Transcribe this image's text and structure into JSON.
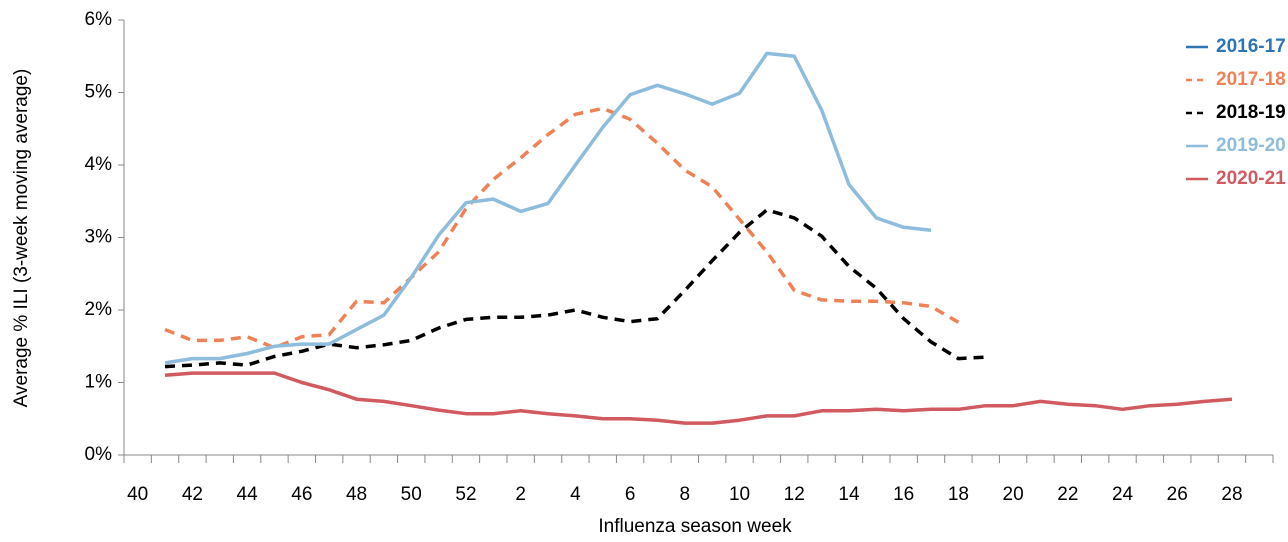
{
  "chart_data": {
    "type": "line",
    "ylabel": "Average % ILI (3-week moving average)",
    "xlabel": "Influenza season week",
    "categories": [
      40,
      null,
      42,
      null,
      44,
      null,
      46,
      null,
      48,
      null,
      50,
      null,
      52,
      null,
      2,
      null,
      4,
      null,
      6,
      null,
      8,
      null,
      10,
      null,
      12,
      null,
      14,
      null,
      16,
      null,
      18,
      null,
      20,
      null,
      22,
      null,
      24,
      null,
      26,
      null,
      28,
      null
    ],
    "ylim": [
      0,
      6
    ],
    "yticks": [
      {
        "value": 0,
        "label": "0%"
      },
      {
        "value": 1,
        "label": "1%"
      },
      {
        "value": 2,
        "label": "2%"
      },
      {
        "value": 3,
        "label": "3%"
      },
      {
        "value": 4,
        "label": "4%"
      },
      {
        "value": 5,
        "label": "5%"
      },
      {
        "value": 6,
        "label": "6%"
      }
    ],
    "grid": false,
    "legend": "top-right",
    "series": [
      {
        "name": "2016-17",
        "color": "#2e75b6",
        "style": "solid",
        "values": [
          null,
          null,
          null,
          null,
          null,
          null,
          null,
          null,
          null,
          null,
          null,
          null,
          null,
          null,
          null,
          null,
          null,
          null,
          null,
          null,
          null,
          null,
          null,
          null,
          null,
          null,
          null,
          null,
          null,
          null,
          null,
          null,
          null,
          null,
          null,
          null,
          null,
          null,
          null,
          null,
          null,
          null
        ]
      },
      {
        "name": "2017-18",
        "color": "#ef8157",
        "style": "dashed",
        "values": [
          null,
          1.73,
          1.58,
          1.58,
          1.63,
          1.48,
          1.63,
          1.66,
          2.12,
          2.1,
          2.45,
          2.8,
          3.4,
          3.8,
          4.1,
          4.42,
          4.7,
          4.78,
          4.63,
          4.3,
          3.93,
          3.7,
          3.25,
          2.8,
          2.27,
          2.14,
          2.12,
          2.12,
          2.1,
          2.05,
          1.83,
          null,
          null,
          null,
          null,
          null,
          null,
          null,
          null,
          null,
          null,
          null
        ]
      },
      {
        "name": "2018-19",
        "color": "#000000",
        "style": "dashed",
        "values": [
          null,
          1.22,
          1.24,
          1.27,
          1.24,
          1.36,
          1.43,
          1.53,
          1.48,
          1.52,
          1.58,
          1.75,
          1.87,
          1.9,
          1.9,
          1.93,
          2.0,
          1.9,
          1.84,
          1.88,
          2.27,
          2.68,
          3.07,
          3.38,
          3.27,
          3.02,
          2.6,
          2.3,
          1.88,
          1.56,
          1.33,
          1.35,
          null,
          null,
          null,
          null,
          null,
          null,
          null,
          null,
          null,
          null
        ]
      },
      {
        "name": "2019-20",
        "color": "#8dbcdc",
        "style": "solid",
        "values": [
          null,
          1.27,
          1.33,
          1.33,
          1.4,
          1.5,
          1.53,
          1.53,
          1.73,
          1.93,
          2.45,
          3.03,
          3.48,
          3.53,
          3.36,
          3.47,
          4.0,
          4.52,
          4.97,
          5.1,
          4.98,
          4.84,
          4.99,
          5.54,
          5.5,
          4.76,
          3.73,
          3.27,
          3.14,
          3.1,
          null,
          null,
          null,
          null,
          null,
          null,
          null,
          null,
          null,
          null,
          null,
          null
        ]
      },
      {
        "name": "2020-21",
        "color": "#d05a5f",
        "style": "solid",
        "values": [
          null,
          1.1,
          1.13,
          1.13,
          1.13,
          1.13,
          1.0,
          0.9,
          0.77,
          0.74,
          0.68,
          0.62,
          0.57,
          0.57,
          0.61,
          0.57,
          0.54,
          0.5,
          0.5,
          0.48,
          0.44,
          0.44,
          0.48,
          0.54,
          0.54,
          0.61,
          0.61,
          0.63,
          0.61,
          0.63,
          0.63,
          0.68,
          0.68,
          0.74,
          0.7,
          0.68,
          0.63,
          0.68,
          0.7,
          0.74,
          0.77,
          null
        ]
      }
    ]
  }
}
